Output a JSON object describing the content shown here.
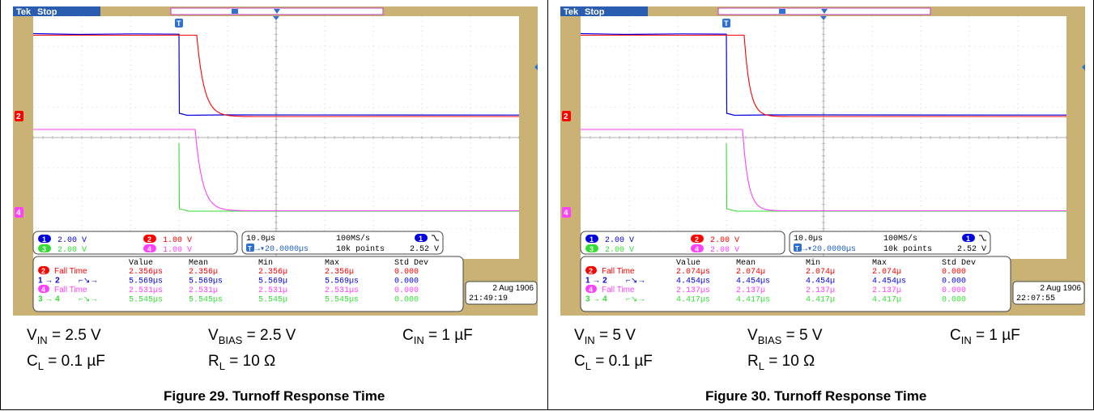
{
  "panels": [
    {
      "id": "fig29",
      "brand": "Tek",
      "state": "Stop",
      "ch_tags": [
        "2",
        "4"
      ],
      "setup": {
        "ch1": "2.00 V",
        "ch2": "1.00 V",
        "ch3": "2.00 V",
        "ch4": "1.00 V"
      },
      "timebase": "10.0µs",
      "sample_rate": "100MS/s",
      "trigger_pos": "20.0000µs",
      "record": "10k points",
      "trigger_level": "2.52 V",
      "meas_headers": [
        "Value",
        "Mean",
        "Min",
        "Max",
        "Std Dev"
      ],
      "meas_rows": [
        {
          "label": "Fall Time",
          "tag": "2",
          "color": "#ff0000",
          "value": "2.356µs",
          "mean": "2.356µ",
          "min": "2.356µ",
          "max": "2.356µ",
          "std": "0.000"
        },
        {
          "label": "",
          "tag": "1 → 2",
          "color": "#0000e0",
          "value": "5.569µs",
          "mean": "5.569µs",
          "min": "5.569µ",
          "max": "5.569µs",
          "std": "0.000"
        },
        {
          "label": "Fall Time",
          "tag": "4",
          "color": "#ff40ff",
          "value": "2.531µs",
          "mean": "2.531µ",
          "min": "2.531µ",
          "max": "2.531µs",
          "std": "0.000"
        },
        {
          "label": "",
          "tag": "3 → 4",
          "color": "#33dd33",
          "value": "5.545µs",
          "mean": "5.545µs",
          "min": "5.545µ",
          "max": "5.545µs",
          "std": "0.000"
        }
      ],
      "date": "2 Aug 1906",
      "time": "21:49:19",
      "conditions": {
        "vin": "2.5 V",
        "vbias": "2.5 V",
        "cin": "1 µF",
        "cl": "0.1 µF",
        "rl": "10 Ω"
      },
      "caption": "Figure 29. Turnoff Response Time"
    },
    {
      "id": "fig30",
      "brand": "Tek",
      "state": "Stop",
      "ch_tags": [
        "2",
        "4"
      ],
      "setup": {
        "ch1": "2.00 V",
        "ch2": "2.00 V",
        "ch3": "2.00 V",
        "ch4": "2.00 V"
      },
      "timebase": "10.0µs",
      "sample_rate": "100MS/s",
      "trigger_pos": "20.0000µs",
      "record": "10k points",
      "trigger_level": "2.52 V",
      "meas_headers": [
        "Value",
        "Mean",
        "Min",
        "Max",
        "Std Dev"
      ],
      "meas_rows": [
        {
          "label": "Fall Time",
          "tag": "2",
          "color": "#ff0000",
          "value": "2.074µs",
          "mean": "2.074µ",
          "min": "2.074µ",
          "max": "2.074µ",
          "std": "0.000"
        },
        {
          "label": "",
          "tag": "1 → 2",
          "color": "#0000e0",
          "value": "4.454µs",
          "mean": "4.454µs",
          "min": "4.454µ",
          "max": "4.454µs",
          "std": "0.000"
        },
        {
          "label": "Fall Time",
          "tag": "4",
          "color": "#ff40ff",
          "value": "2.137µs",
          "mean": "2.137µ",
          "min": "2.137µ",
          "max": "2.137µ",
          "std": "0.000"
        },
        {
          "label": "",
          "tag": "3 → 4",
          "color": "#33dd33",
          "value": "4.417µs",
          "mean": "4.417µs",
          "min": "4.417µ",
          "max": "4.417µ",
          "std": "0.000"
        }
      ],
      "date": "2 Aug 1906",
      "time": "22:07:55",
      "conditions": {
        "vin": "5 V",
        "vbias": "5 V",
        "cin": "1 µF",
        "cl": "0.1 µF",
        "rl": "10 Ω"
      },
      "caption": "Figure 30. Turnoff Response Time"
    }
  ],
  "colors": {
    "bezel": "#c9b274",
    "grid": "#bbbbbb",
    "ch1": "#0000e0",
    "ch2": "#ff0000",
    "ch3": "#33dd33",
    "ch4": "#ff40ff"
  }
}
